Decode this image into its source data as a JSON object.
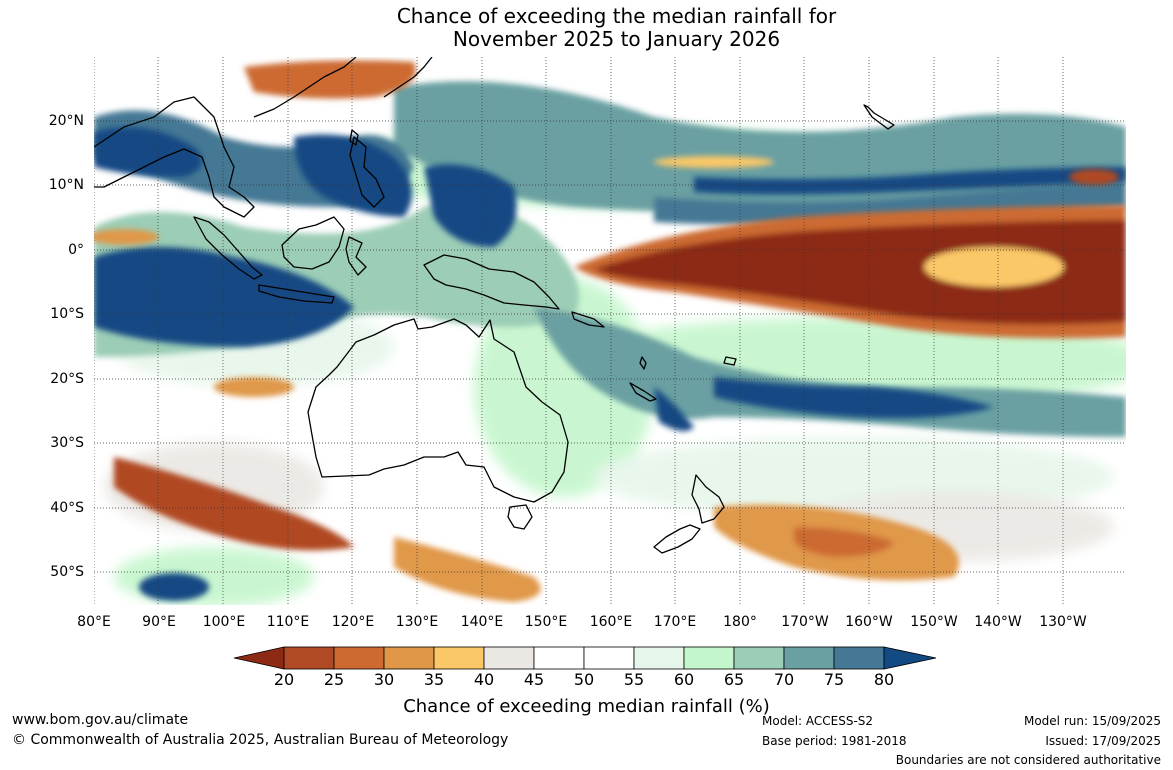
{
  "header": {
    "title_line_1": "Chance of exceeding the median rainfall for",
    "title_line_2": "November 2025 to January 2026"
  },
  "map": {
    "lat_labels": [
      "20°N",
      "10°N",
      "0°",
      "10°S",
      "20°S",
      "30°S",
      "40°S",
      "50°S"
    ],
    "lon_labels": [
      "80°E",
      "90°E",
      "100°E",
      "110°E",
      "120°E",
      "130°E",
      "140°E",
      "150°E",
      "160°E",
      "170°E",
      "180°",
      "170°W",
      "160°W",
      "150°W",
      "140°W",
      "130°W"
    ]
  },
  "legend": {
    "title": "Chance of exceeding median rainfall (%)",
    "ticks": [
      "20",
      "25",
      "30",
      "35",
      "40",
      "45",
      "50",
      "55",
      "60",
      "65",
      "70",
      "75",
      "80"
    ],
    "colors": [
      "#8c2a14",
      "#b04a24",
      "#cc6a30",
      "#e09848",
      "#fbc868",
      "#ebe8e4",
      "#ffffff",
      "#ffffff",
      "#e6f6ea",
      "#c4f6cc",
      "#9ccdb6",
      "#6aa0a2",
      "#447894",
      "#124a84"
    ]
  },
  "footer": {
    "website": "www.bom.gov.au/climate",
    "copyright": "© Commonwealth of Australia 2025, Australian Bureau of Meteorology",
    "model": "Model: ACCESS-S2",
    "base_period": "Base period: 1981-2018",
    "model_run": "Model run: 15/09/2025",
    "issued": "Issued: 17/09/2025",
    "disclaimer": "Boundaries are not considered authoritative"
  }
}
